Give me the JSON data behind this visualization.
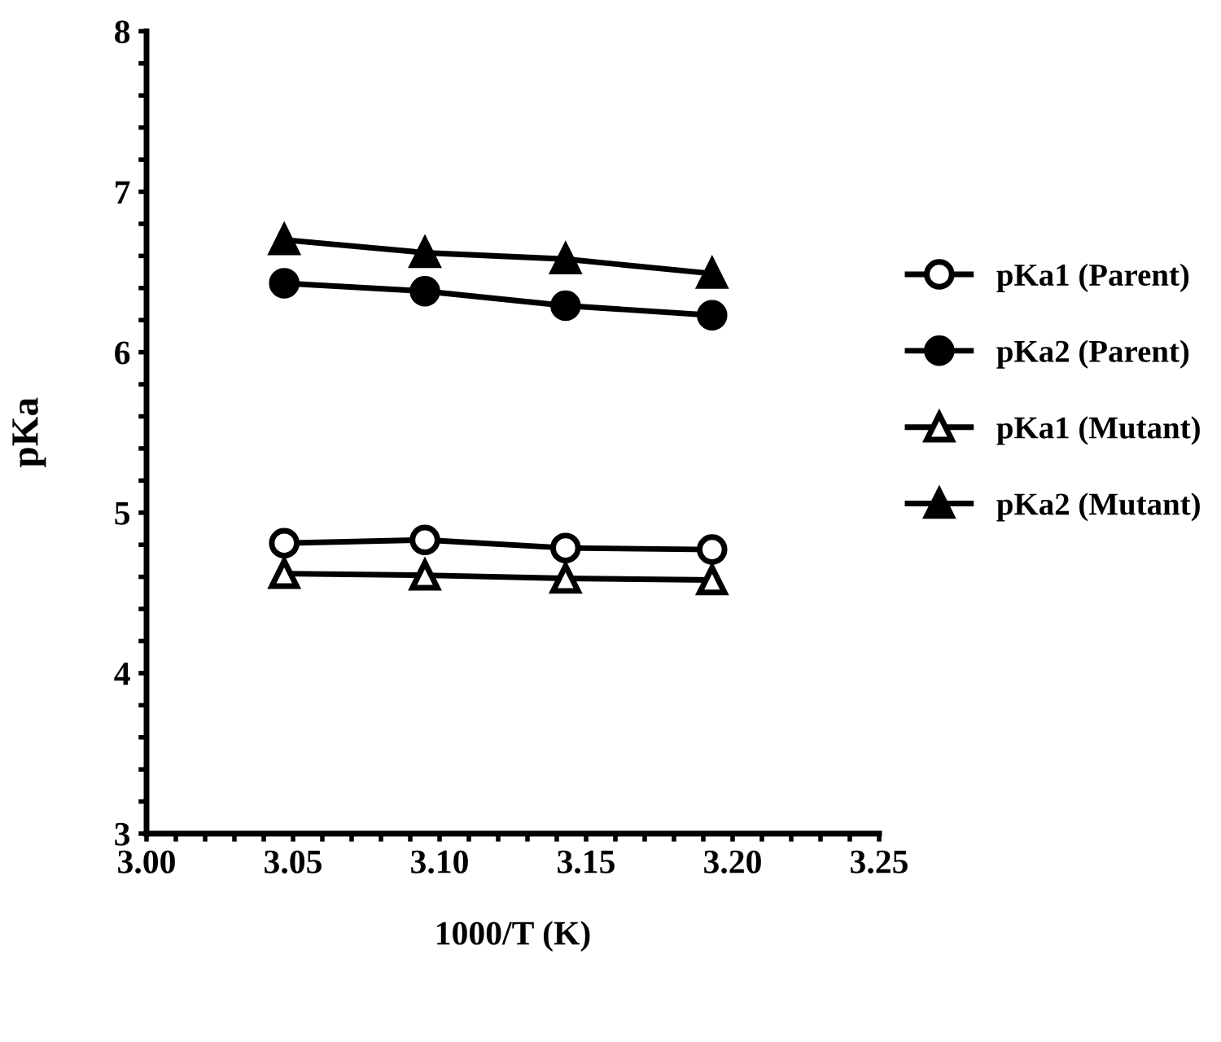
{
  "chart_data": {
    "type": "line",
    "xlabel": "1000/T (K)",
    "ylabel": "pKa",
    "xlim": [
      3.0,
      3.25
    ],
    "ylim": [
      3,
      8
    ],
    "xticks": [
      {
        "value": 3.0,
        "label": "3.00"
      },
      {
        "value": 3.01,
        "label": null
      },
      {
        "value": 3.02,
        "label": null
      },
      {
        "value": 3.03,
        "label": null
      },
      {
        "value": 3.04,
        "label": null
      },
      {
        "value": 3.05,
        "label": "3.05"
      },
      {
        "value": 3.06,
        "label": null
      },
      {
        "value": 3.07,
        "label": null
      },
      {
        "value": 3.08,
        "label": null
      },
      {
        "value": 3.09,
        "label": null
      },
      {
        "value": 3.1,
        "label": "3.10"
      },
      {
        "value": 3.11,
        "label": null
      },
      {
        "value": 3.12,
        "label": null
      },
      {
        "value": 3.13,
        "label": null
      },
      {
        "value": 3.14,
        "label": null
      },
      {
        "value": 3.15,
        "label": "3.15"
      },
      {
        "value": 3.16,
        "label": null
      },
      {
        "value": 3.17,
        "label": null
      },
      {
        "value": 3.18,
        "label": null
      },
      {
        "value": 3.19,
        "label": null
      },
      {
        "value": 3.2,
        "label": "3.20"
      },
      {
        "value": 3.21,
        "label": null
      },
      {
        "value": 3.22,
        "label": null
      },
      {
        "value": 3.23,
        "label": null
      },
      {
        "value": 3.24,
        "label": null
      },
      {
        "value": 3.25,
        "label": "3.25"
      }
    ],
    "yticks": [
      3,
      {
        "value": 3.2,
        "label": null
      },
      {
        "value": 3.4,
        "label": null
      },
      {
        "value": 3.6,
        "label": null
      },
      {
        "value": 3.8,
        "label": null
      },
      4,
      {
        "value": 4.2,
        "label": null
      },
      {
        "value": 4.4,
        "label": null
      },
      {
        "value": 4.6,
        "label": null
      },
      {
        "value": 4.8,
        "label": null
      },
      5,
      {
        "value": 5.2,
        "label": null
      },
      {
        "value": 5.4,
        "label": null
      },
      {
        "value": 5.6,
        "label": null
      },
      {
        "value": 5.8,
        "label": null
      },
      6,
      {
        "value": 6.2,
        "label": null
      },
      {
        "value": 6.4,
        "label": null
      },
      {
        "value": 6.6,
        "label": null
      },
      {
        "value": 6.8,
        "label": null
      },
      7,
      {
        "value": 7.2,
        "label": null
      },
      {
        "value": 7.4,
        "label": null
      },
      {
        "value": 7.6,
        "label": null
      },
      {
        "value": 7.8,
        "label": null
      },
      8
    ],
    "x": [
      3.047,
      3.095,
      3.143,
      3.193
    ],
    "grid": false,
    "legend": "right",
    "series": [
      {
        "name": "pKa1 (Parent)",
        "color": "#000000",
        "marker": "circle",
        "values": [
          4.81,
          4.83,
          4.78,
          4.77
        ]
      },
      {
        "name": "pKa2 (Parent)",
        "color": "#000000",
        "marker": "circle",
        "values": [
          6.43,
          6.38,
          6.29,
          6.23
        ]
      },
      {
        "name": "pKa1 (Mutant)",
        "color": "#000000",
        "marker": "triangle",
        "values": [
          4.62,
          4.61,
          4.59,
          4.58
        ]
      },
      {
        "name": "pKa2 (Mutant)",
        "color": "#000000",
        "marker": "triangle",
        "values": [
          6.7,
          6.62,
          6.58,
          6.49
        ]
      }
    ]
  }
}
